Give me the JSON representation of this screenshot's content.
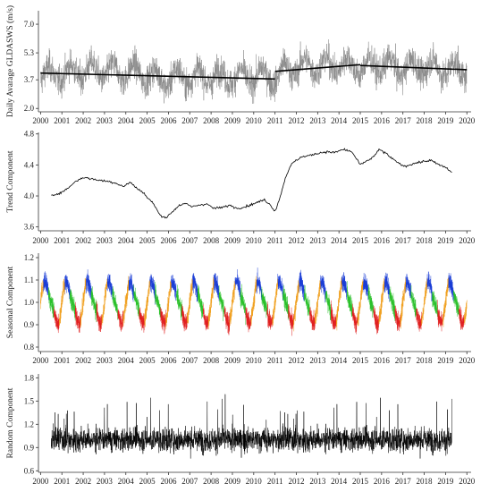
{
  "chart_data": [
    {
      "type": "line",
      "ylabel": "Daily Avarage GLDASWS (m/s)",
      "xlim": [
        1999.9,
        2020.2
      ],
      "ylim": [
        1.8,
        7.8
      ],
      "yticks": [
        "2.0",
        "3.7",
        "5.3",
        "7.0"
      ],
      "xticks": [
        "2000",
        "2001",
        "2002",
        "2003",
        "2004",
        "2005",
        "2006",
        "2007",
        "2008",
        "2009",
        "2010",
        "2011",
        "2012",
        "2013",
        "2014",
        "2015",
        "2016",
        "2017",
        "2018",
        "2019",
        "2020"
      ],
      "series_color": "#8a8a8a",
      "trend_color": "#000000",
      "trend_segments": [
        {
          "x": [
            2000.0,
            2011.0
          ],
          "y": [
            4.1,
            3.75
          ]
        },
        {
          "x": [
            2011.0,
            2015.0
          ],
          "y": [
            4.2,
            4.6
          ]
        },
        {
          "x": [
            2015.0,
            2020.0
          ],
          "y": [
            4.55,
            4.3
          ]
        }
      ]
    },
    {
      "type": "line",
      "ylabel": "Trend Component",
      "xlim": [
        1999.9,
        2020.2
      ],
      "ylim": [
        3.55,
        4.82
      ],
      "yticks": [
        "3.6",
        "4.0",
        "4.4",
        "4.8"
      ],
      "xticks": [
        "2000",
        "2001",
        "2002",
        "2003",
        "2004",
        "2005",
        "2006",
        "2007",
        "2008",
        "2009",
        "2010",
        "2011",
        "2012",
        "2013",
        "2014",
        "2015",
        "2016",
        "2017",
        "2018",
        "2019",
        "2020"
      ],
      "line_color": "#000000",
      "series": [
        {
          "x": [
            2000.5,
            2000.8,
            2001.0,
            2001.3,
            2001.6,
            2002.0,
            2002.4,
            2002.8,
            2003.1,
            2003.5,
            2003.9,
            2004.2,
            2004.5,
            2004.8,
            2005.0,
            2005.3,
            2005.6,
            2005.9,
            2006.2,
            2006.5,
            2006.8,
            2007.1,
            2007.4,
            2007.8,
            2008.1,
            2008.5,
            2008.9,
            2009.2,
            2009.6,
            2009.9,
            2010.2,
            2010.5,
            2010.8,
            2011.0,
            2011.2,
            2011.5,
            2011.8,
            2012.2,
            2012.6,
            2013.0,
            2013.4,
            2013.8,
            2014.2,
            2014.6,
            2015.0,
            2015.3,
            2015.6,
            2015.9,
            2016.2,
            2016.5,
            2016.8,
            2017.1,
            2017.5,
            2017.9,
            2018.3,
            2018.7,
            2019.0,
            2019.3
          ],
          "y": [
            4.0,
            4.03,
            4.05,
            4.1,
            4.18,
            4.24,
            4.22,
            4.2,
            4.19,
            4.17,
            4.12,
            4.18,
            4.1,
            4.05,
            3.98,
            3.9,
            3.75,
            3.72,
            3.8,
            3.88,
            3.9,
            3.86,
            3.88,
            3.9,
            3.84,
            3.85,
            3.88,
            3.84,
            3.86,
            3.89,
            3.92,
            3.95,
            3.88,
            3.8,
            3.95,
            4.25,
            4.42,
            4.5,
            4.52,
            4.55,
            4.57,
            4.56,
            4.6,
            4.57,
            4.4,
            4.45,
            4.5,
            4.6,
            4.55,
            4.48,
            4.42,
            4.38,
            4.42,
            4.44,
            4.46,
            4.4,
            4.37,
            4.3
          ]
        }
      ]
    },
    {
      "type": "line",
      "ylabel": "Seasonal Component",
      "xlim": [
        1999.9,
        2020.2
      ],
      "ylim": [
        0.78,
        1.22
      ],
      "yticks": [
        "0.8",
        "0.9",
        "1.0",
        "1.1",
        "1.2"
      ],
      "xticks": [
        "2000",
        "2001",
        "2002",
        "2003",
        "2004",
        "2005",
        "2006",
        "2007",
        "2008",
        "2009",
        "2010",
        "2011",
        "2012",
        "2013",
        "2014",
        "2015",
        "2016",
        "2017",
        "2018",
        "2019",
        "2020"
      ],
      "season_colors": [
        "#1a3dd6",
        "#2bc02b",
        "#e02020",
        "#f0a020"
      ]
    },
    {
      "type": "line",
      "ylabel": "Random Component",
      "xlim": [
        1999.9,
        2020.2
      ],
      "ylim": [
        0.58,
        1.85
      ],
      "yticks": [
        "0.6",
        "0.9",
        "1.2",
        "1.5",
        "1.8"
      ],
      "xticks": [
        "2000",
        "2001",
        "2002",
        "2003",
        "2004",
        "2005",
        "2006",
        "2007",
        "2008",
        "2009",
        "2010",
        "2011",
        "2012",
        "2013",
        "2014",
        "2015",
        "2016",
        "2017",
        "2018",
        "2019",
        "2020"
      ],
      "line_color": "#000000"
    }
  ]
}
